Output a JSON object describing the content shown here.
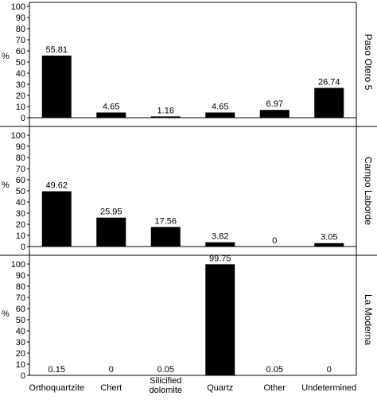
{
  "chart_data": {
    "type": "bar",
    "categories": [
      "Orthoquartzite",
      "Chert",
      "Silicified dolomite",
      "Quartz",
      "Other",
      "Undetermined"
    ],
    "ylabel": "%",
    "ylim": [
      0,
      100
    ],
    "yticks": [
      0,
      10,
      20,
      30,
      40,
      50,
      60,
      70,
      80,
      90,
      100
    ],
    "bar_color": "#000000",
    "grid": false,
    "panels": [
      {
        "title": "Paso Otero 5",
        "values": [
          55.81,
          4.65,
          1.16,
          4.65,
          6.97,
          26.74
        ],
        "labels": [
          "55.81",
          "4.65",
          "1.16",
          "4.65",
          "6.97",
          "26.74"
        ]
      },
      {
        "title": "Campo Laborde",
        "values": [
          49.62,
          25.95,
          17.56,
          3.82,
          0,
          3.05
        ],
        "labels": [
          "49.62",
          "25.95",
          "17.56",
          "3.82",
          "0",
          "3.05"
        ]
      },
      {
        "title": "La Moderna",
        "values": [
          0.15,
          0,
          0.05,
          99.75,
          0.05,
          0
        ],
        "labels": [
          "0.15",
          "0",
          "0.05",
          "99.75",
          "0.05",
          "0"
        ]
      }
    ]
  }
}
